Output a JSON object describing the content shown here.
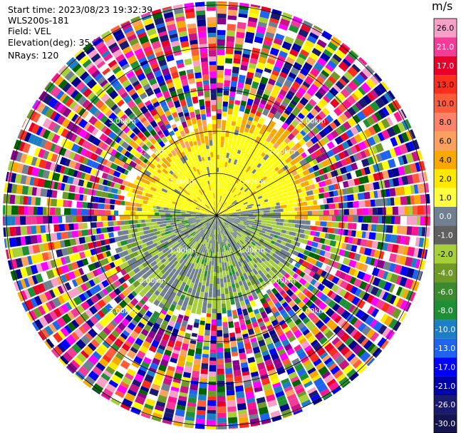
{
  "header": {
    "start_time": "Start time: 2023/08/23 19:32:39",
    "instrument": "WLS200s-181",
    "field": "Field: VEL",
    "elevation": "Elevation(deg): 35.30",
    "nrays": "NRays: 120"
  },
  "chart_data": {
    "type": "heatmap",
    "projection": "polar (PPI)",
    "range_ring_labels": [
      "1.00km",
      "2.00km",
      "3.00km"
    ],
    "colorbar": {
      "unit": "m/s",
      "levels": [
        "26.0",
        "21.0",
        "17.0",
        "13.0",
        "10.0",
        "8.0",
        "6.0",
        "4.0",
        "2.0",
        "1.0",
        "0.0",
        "-1.0",
        "-2.0",
        "-4.0",
        "-6.0",
        "-8.0",
        "-10.0",
        "-13.0",
        "-17.0",
        "-21.0",
        "-26.0",
        "-30.0"
      ],
      "colors": [
        "#f7a0c8",
        "#f23c98",
        "#e8002a",
        "#fc2e1e",
        "#ff5c3c",
        "#fb8468",
        "#fca060",
        "#f9a800",
        "#ffe800",
        "#ffff40",
        "#708090",
        "#606060",
        "#a6cf3a",
        "#6f9a28",
        "#3a8a2e",
        "#1f8f36",
        "#1c7ec4",
        "#1e64f0",
        "#0000ff",
        "#0000a8",
        "#1a1a70",
        "#141450"
      ]
    }
  }
}
